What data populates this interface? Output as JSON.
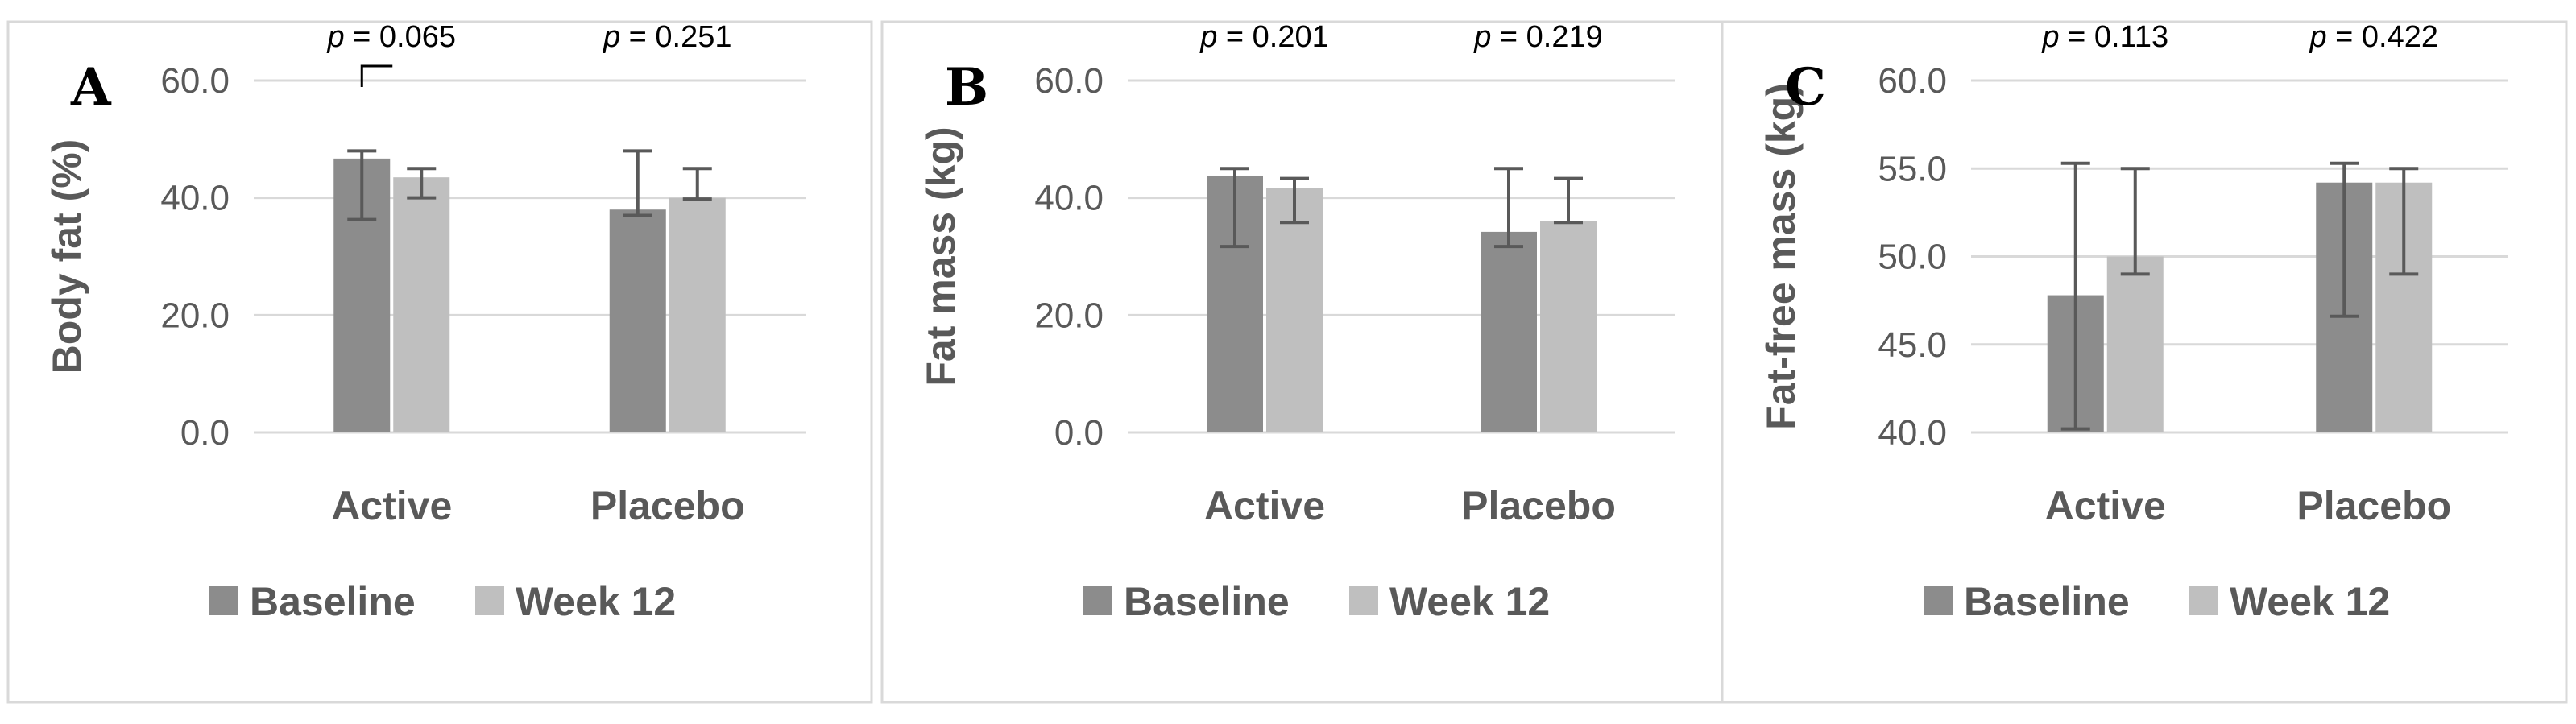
{
  "colors": {
    "baseline": "#8c8c8c",
    "week12": "#bfbfbf",
    "errorbar": "#595959",
    "grid": "#d9d9d9",
    "frame": "#d9d9d9",
    "text": "#595959"
  },
  "chart_data": [
    {
      "type": "bar",
      "panel": "A",
      "ylabel": "Body fat (%)",
      "ylim": [
        0,
        60
      ],
      "yticks": [
        0,
        20,
        40,
        60
      ],
      "ytick_labels": [
        "0.0",
        "20.0",
        "40.0",
        "60.0"
      ],
      "categories": [
        "Active",
        "Placebo"
      ],
      "series": [
        {
          "name": "Baseline",
          "values": [
            46.7,
            38.0
          ],
          "err_low": [
            36.3,
            37.0
          ],
          "err_high": [
            48.0,
            48.0
          ]
        },
        {
          "name": "Week 12",
          "values": [
            43.5,
            40.0
          ],
          "err_low": [
            40.0,
            39.8
          ],
          "err_high": [
            45.0,
            45.0
          ]
        }
      ],
      "pvalues": [
        {
          "p": "p",
          "text": " = 0.065"
        },
        {
          "p": "p",
          "text": " = 0.251"
        }
      ],
      "bracket_on": 0,
      "legend": [
        "Baseline",
        "Week 12"
      ],
      "legend_position": "bottom",
      "grid": true
    },
    {
      "type": "bar",
      "panel": "B",
      "ylabel": "Fat mass (kg)",
      "ylim": [
        0,
        60
      ],
      "yticks": [
        0,
        20,
        40,
        60
      ],
      "ytick_labels": [
        "0.0",
        "20.0",
        "40.0",
        "60.0"
      ],
      "categories": [
        "Active",
        "Placebo"
      ],
      "series": [
        {
          "name": "Baseline",
          "values": [
            43.8,
            34.2
          ],
          "err_low": [
            31.7,
            31.7
          ],
          "err_high": [
            45.0,
            45.0
          ]
        },
        {
          "name": "Week 12",
          "values": [
            41.7,
            36.0
          ],
          "err_low": [
            35.8,
            35.8
          ],
          "err_high": [
            43.3,
            43.3
          ]
        }
      ],
      "pvalues": [
        {
          "p": "p",
          "text": " = 0.201"
        },
        {
          "p": "p",
          "text": " = 0.219"
        }
      ],
      "bracket_on": -1,
      "legend": [
        "Baseline",
        "Week 12"
      ],
      "legend_position": "bottom",
      "grid": true
    },
    {
      "type": "bar",
      "panel": "C",
      "ylabel": "Fat-free mass (kg)",
      "ylim": [
        40,
        60
      ],
      "yticks": [
        40,
        45,
        50,
        55,
        60
      ],
      "ytick_labels": [
        "40.0",
        "45.0",
        "50.0",
        "55.0",
        "60.0"
      ],
      "categories": [
        "Active",
        "Placebo"
      ],
      "series": [
        {
          "name": "Baseline",
          "values": [
            47.8,
            54.2
          ],
          "err_low": [
            40.2,
            46.6
          ],
          "err_high": [
            55.3,
            55.3
          ]
        },
        {
          "name": "Week 12",
          "values": [
            50.0,
            54.2
          ],
          "err_low": [
            49.0,
            49.0
          ],
          "err_high": [
            55.0,
            55.0
          ]
        }
      ],
      "pvalues": [
        {
          "p": "p",
          "text": " = 0.113"
        },
        {
          "p": "p",
          "text": " = 0.422"
        }
      ],
      "bracket_on": -1,
      "legend": [
        "Baseline",
        "Week 12"
      ],
      "legend_position": "bottom",
      "grid": true
    }
  ]
}
